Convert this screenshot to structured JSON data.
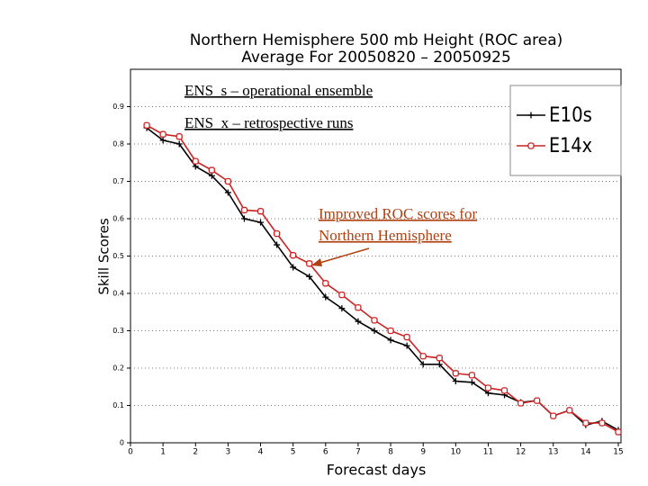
{
  "chart_data": {
    "type": "line",
    "title": [
      "Northern Hemisphere 500 mb Height (ROC area)",
      "Average For 20050820 – 20050925"
    ],
    "x_label": "Forecast days",
    "y_label": "Skill Scores",
    "x": [
      0.5,
      1,
      1.5,
      2,
      2.5,
      3,
      3.5,
      4,
      4.5,
      5,
      5.5,
      6,
      6.5,
      7,
      7.5,
      8,
      8.5,
      9,
      9.5,
      10,
      10.5,
      11,
      11.5,
      12,
      12.5,
      13,
      13.5,
      14,
      14.5,
      15
    ],
    "series": [
      {
        "name": "E10s",
        "color": "#000000",
        "marker": "plus",
        "values": [
          0.843,
          0.81,
          0.8,
          0.74,
          0.715,
          0.67,
          0.6,
          0.59,
          0.53,
          0.47,
          0.445,
          0.39,
          0.36,
          0.325,
          0.3,
          0.275,
          0.26,
          0.21,
          0.21,
          0.165,
          0.162,
          0.133,
          0.128,
          0.108,
          0.113,
          0.072,
          0.087,
          0.048,
          0.058,
          0.034
        ]
      },
      {
        "name": "E14x",
        "color": "#cc2222",
        "marker": "square",
        "values": [
          0.85,
          0.826,
          0.82,
          0.754,
          0.73,
          0.7,
          0.623,
          0.62,
          0.56,
          0.502,
          0.48,
          0.427,
          0.396,
          0.362,
          0.328,
          0.3,
          0.283,
          0.232,
          0.227,
          0.186,
          0.181,
          0.147,
          0.14,
          0.106,
          0.113,
          0.072,
          0.087,
          0.053,
          0.053,
          0.029
        ]
      }
    ],
    "xlim": [
      0,
      15
    ],
    "xticks": [
      0,
      1,
      2,
      3,
      4,
      5,
      6,
      7,
      8,
      9,
      10,
      11,
      12,
      13,
      14,
      15
    ],
    "ylim": [
      0,
      1.0
    ],
    "yticks": [
      0,
      0.1,
      0.2,
      0.3,
      0.4,
      0.5,
      0.6,
      0.7,
      0.8,
      0.9
    ],
    "grid": true,
    "legend": "upper right",
    "annotations": [
      {
        "text": [
          "ENS_s – operational ensemble"
        ]
      },
      {
        "text": [
          "ENS_x – retrospective runs"
        ]
      },
      {
        "text": [
          "Improved ROC scores for",
          "Northern Hemisphere"
        ],
        "color": "#b04010"
      }
    ]
  }
}
